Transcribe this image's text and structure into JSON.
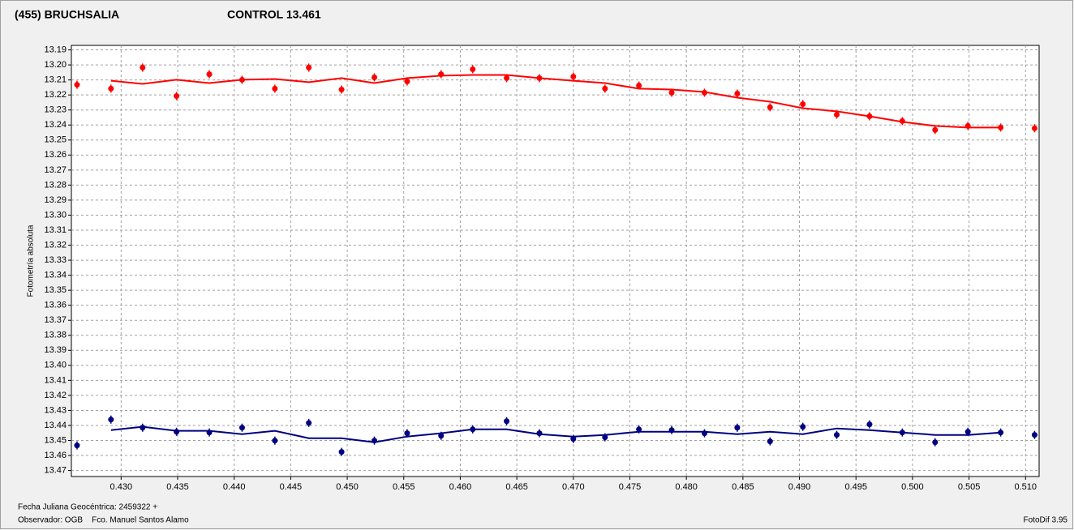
{
  "chart_data": {
    "type": "scatter",
    "y_label": "Fotometría absoluta",
    "x_label": "Fecha Juliana Geocéntrica: 2459322 +",
    "observer": "Observador: OGB    Fco. Manuel Santos Alamo",
    "software": "FotoDif 3.95",
    "y_inverted": true,
    "grid": true,
    "xlim": [
      0.4256,
      0.5112
    ],
    "ylim": [
      13.187,
      13.474
    ],
    "xticks": [
      {
        "value": 0.43,
        "label": "0.430"
      },
      0.435,
      {
        "value": 0.44,
        "label": "0.440"
      },
      0.445,
      {
        "value": 0.45,
        "label": "0.450"
      },
      0.455,
      {
        "value": 0.46,
        "label": "0.460"
      },
      0.465,
      {
        "value": 0.47,
        "label": "0.470"
      },
      0.475,
      {
        "value": 0.48,
        "label": "0.480"
      },
      0.485,
      {
        "value": 0.49,
        "label": "0.490"
      },
      0.495,
      {
        "value": 0.5,
        "label": "0.500"
      },
      0.505,
      {
        "value": 0.51,
        "label": "0.510"
      }
    ],
    "yticks": [
      13.19,
      {
        "value": 13.2,
        "label": "13.20"
      },
      13.21,
      13.22,
      13.23,
      13.24,
      13.25,
      13.26,
      13.27,
      13.28,
      13.29,
      {
        "value": 13.3,
        "label": "13.30"
      },
      13.31,
      13.32,
      13.33,
      13.34,
      13.35,
      13.36,
      13.37,
      13.38,
      13.39,
      {
        "value": 13.4,
        "label": "13.40"
      },
      13.41,
      13.42,
      13.43,
      13.44,
      13.45,
      13.46,
      13.47
    ],
    "x": [
      0.4261,
      0.4291,
      0.4319,
      0.4349,
      0.4378,
      0.4407,
      0.4436,
      0.4466,
      0.4495,
      0.4524,
      0.4553,
      0.4583,
      0.4611,
      0.4641,
      0.467,
      0.47,
      0.4728,
      0.4758,
      0.4787,
      0.4816,
      0.4845,
      0.4874,
      0.4903,
      0.4933,
      0.4962,
      0.4991,
      0.502,
      0.5049,
      0.5078,
      0.5108
    ],
    "series": [
      {
        "name": "(455) BRUCHSALIA",
        "color": "#ff0000",
        "values": [
          13.2132,
          13.2158,
          13.2018,
          13.2207,
          13.2062,
          13.2099,
          13.2158,
          13.2018,
          13.2164,
          13.2083,
          13.211,
          13.2062,
          13.2029,
          13.2088,
          13.2088,
          13.2078,
          13.2158,
          13.2137,
          13.2185,
          13.2185,
          13.2191,
          13.2282,
          13.2261,
          13.2331,
          13.2342,
          13.2374,
          13.2433,
          13.2406,
          13.2417,
          13.2422
        ],
        "fit": [
          null,
          13.2105,
          13.2126,
          13.2099,
          13.2121,
          13.2099,
          13.2094,
          13.2115,
          13.2088,
          13.2121,
          13.2088,
          13.2072,
          13.2067,
          13.2067,
          13.2088,
          13.2105,
          13.2121,
          13.2158,
          13.2164,
          13.218,
          13.2218,
          13.2245,
          13.2288,
          13.2309,
          13.2342,
          13.2379,
          13.2406,
          13.2417,
          13.2417,
          null
        ]
      },
      {
        "name": "CONTROL 13.461",
        "color": "#000080",
        "values": [
          13.4533,
          13.4361,
          13.4415,
          13.4442,
          13.4447,
          13.4415,
          13.4501,
          13.4383,
          13.4576,
          13.4501,
          13.4452,
          13.4469,
          13.4426,
          13.4372,
          13.4452,
          13.449,
          13.4479,
          13.4426,
          13.4431,
          13.4452,
          13.4415,
          13.4506,
          13.4409,
          13.4463,
          13.4393,
          13.4447,
          13.4512,
          13.4442,
          13.4447,
          13.4463
        ],
        "fit": [
          null,
          13.4431,
          13.4409,
          13.4436,
          13.4436,
          13.4458,
          13.4436,
          13.4485,
          13.4485,
          13.4512,
          13.4474,
          13.4452,
          13.4426,
          13.4426,
          13.4458,
          13.4474,
          13.4463,
          13.4442,
          13.4442,
          13.4442,
          13.4458,
          13.4442,
          13.4458,
          13.442,
          13.4431,
          13.4447,
          13.4463,
          13.4463,
          13.4447,
          null
        ]
      }
    ]
  }
}
